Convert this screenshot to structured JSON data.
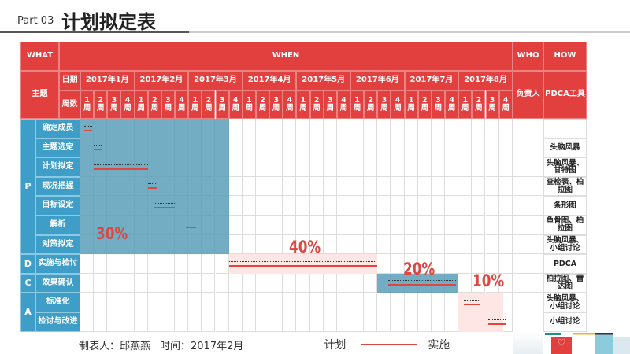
{
  "title": {
    "part": "Part 03",
    "main": "计划拟定表"
  },
  "header": {
    "what": "WHAT",
    "when": "WHEN",
    "who": "WHO",
    "how": "HOW",
    "topic": "主题",
    "date": "日期",
    "weeks": "周数",
    "owner": "负责人",
    "tool": "PDCA工具"
  },
  "months": [
    "2017年1月",
    "2017年2月",
    "2017年3月",
    "2017年4月",
    "2017年5月",
    "2017年6月",
    "2017年7月",
    "2017年8月"
  ],
  "week_labels": [
    "1周",
    "2周",
    "3周",
    "4周"
  ],
  "phases": [
    {
      "label": "P",
      "rows": [
        0,
        6
      ]
    },
    {
      "label": "D",
      "rows": [
        7,
        7
      ]
    },
    {
      "label": "C",
      "rows": [
        8,
        8
      ]
    },
    {
      "label": "A",
      "rows": [
        9,
        10
      ]
    }
  ],
  "tasks": [
    {
      "name": "确定成员",
      "tool": "",
      "plan": [
        0.3,
        0.9
      ],
      "actual": [
        0.3,
        0.9
      ]
    },
    {
      "name": "主题选定",
      "tool": "头脑风暴",
      "plan": [
        1,
        1.6
      ],
      "actual": [
        1,
        1.6
      ]
    },
    {
      "name": "计划拟定",
      "tool": "头脑风暴、甘特图",
      "plan": [
        1,
        5
      ],
      "actual": [
        1,
        5
      ]
    },
    {
      "name": "现况把握",
      "tool": "查检表、柏拉图",
      "plan": [
        5,
        5.7
      ],
      "actual": [
        5,
        5.7
      ]
    },
    {
      "name": "目标设定",
      "tool": "条形图",
      "plan": [
        5.4,
        7
      ],
      "actual": [
        5.4,
        7
      ]
    },
    {
      "name": "解析",
      "tool": "鱼骨图、柏拉图",
      "plan": [
        7.8,
        8.6
      ],
      "actual": [
        7.8,
        8.6
      ]
    },
    {
      "name": "对策拟定",
      "tool": "头脑风暴、小组讨论",
      "plan": null,
      "actual": null
    },
    {
      "name": "实施与检讨",
      "tool": "PDCA",
      "plan": [
        11,
        21.8
      ],
      "actual": [
        11,
        22
      ]
    },
    {
      "name": "效果确认",
      "tool": "柏拉图、雷达图",
      "plan": [
        22.8,
        27.8
      ],
      "actual": [
        22.8,
        27.8
      ]
    },
    {
      "name": "标准化",
      "tool": "头脑风暴、小组讨论",
      "plan": [
        28.4,
        29.6
      ],
      "actual": [
        28.4,
        29.6
      ]
    },
    {
      "name": "检讨与改进",
      "tool": "小组讨论",
      "plan": [
        30.2,
        31.5
      ],
      "actual": [
        30.2,
        31.5
      ]
    }
  ],
  "stages": [
    {
      "percent": "30%",
      "weeks": [
        0,
        11
      ],
      "rows": [
        0,
        6
      ],
      "color": "#5b9fb8"
    },
    {
      "percent": "40%",
      "weeks": [
        11,
        22
      ],
      "rows": [
        7,
        7
      ],
      "color": "#fde6e3"
    },
    {
      "percent": "20%",
      "weeks": [
        22,
        28
      ],
      "rows": [
        8,
        8
      ],
      "color": "#5b9fb8"
    },
    {
      "percent": "10%",
      "weeks": [
        28,
        31.3
      ],
      "rows": [
        9,
        10
      ],
      "color": "#fde6e3"
    }
  ],
  "footer": {
    "maker": "制表人：邱燕燕",
    "time": "时间：2017年2月",
    "plan_label": "计划",
    "actual_label": "实施"
  },
  "colors": {
    "header": "#e2403f",
    "phase": "#3f9ec8",
    "plan_line": "#333333",
    "actual_line": "#e0463f"
  }
}
